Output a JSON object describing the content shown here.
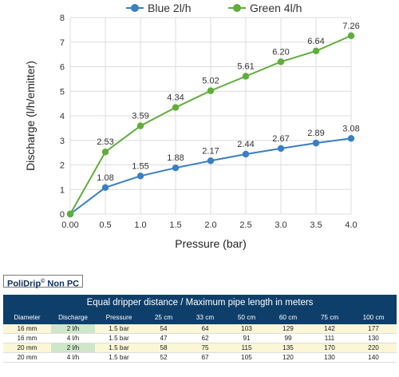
{
  "chart_data": {
    "type": "line",
    "x": [
      0.0,
      0.5,
      1.0,
      1.5,
      2.0,
      2.5,
      3.0,
      3.5,
      4.0
    ],
    "x_tick_labels": [
      "0.00",
      "0.5",
      "1.0",
      "1.5",
      "2.0",
      "2.5",
      "3.0",
      "3.5",
      "4.0"
    ],
    "xlabel": "Pressure (bar)",
    "ylabel": "Discharge (l/h/emitter)",
    "ylim": [
      0,
      8
    ],
    "y_ticks": [
      0,
      1,
      2,
      3,
      4,
      5,
      6,
      7,
      8
    ],
    "grid": true,
    "legend_position": "top",
    "series": [
      {
        "name": "Blue 2l/h",
        "color": "#3a7fc1",
        "values": [
          0,
          1.08,
          1.55,
          1.88,
          2.17,
          2.44,
          2.67,
          2.89,
          3.08
        ],
        "labels": [
          "",
          "1.08",
          "1.55",
          "1.88",
          "2.17",
          "2.44",
          "2.67",
          "2.89",
          "3.08"
        ]
      },
      {
        "name": "Green 4l/h",
        "color": "#5fad3b",
        "values": [
          0,
          2.53,
          3.59,
          4.34,
          5.02,
          5.61,
          6.2,
          6.64,
          7.26
        ],
        "labels": [
          "",
          "2.53",
          "3.59",
          "4.34",
          "5.02",
          "5.61",
          "6.20",
          "6.64",
          "7.26"
        ]
      }
    ]
  },
  "brand": {
    "name": "PoliDrip",
    "mark": "©",
    "suffix": " Non PC"
  },
  "table": {
    "title": "Equal dripper distance / Maximum pipe length in meters",
    "headers": [
      "Diameter",
      "Discharge",
      "Pressure",
      "25 cm",
      "33 cm",
      "50 cm",
      "60 cm",
      "75 cm",
      "100 cm"
    ],
    "rows": [
      [
        "16 mm",
        "2 l/h",
        "1.5 bar",
        "54",
        "64",
        "103",
        "129",
        "142",
        "177"
      ],
      [
        "16 mm",
        "4 l/h",
        "1.5 bar",
        "47",
        "62",
        "91",
        "99",
        "111",
        "130"
      ],
      [
        "20 mm",
        "2 l/h",
        "1.5 bar",
        "58",
        "75",
        "115",
        "135",
        "170",
        "220"
      ],
      [
        "20 mm",
        "4 l/h",
        "1.5 bar",
        "52",
        "67",
        "105",
        "120",
        "130",
        "140"
      ]
    ]
  }
}
